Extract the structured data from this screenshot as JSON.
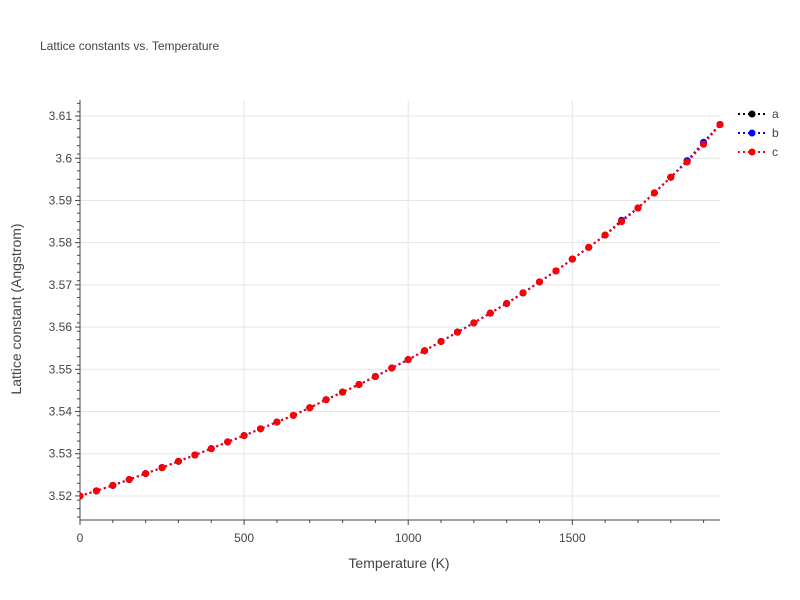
{
  "chart_data": {
    "type": "line",
    "title": "Lattice constants vs. Temperature",
    "xlabel": "Temperature (K)",
    "ylabel": "Lattice constant (Angstrom)",
    "xlim": [
      0,
      1950
    ],
    "ylim": [
      3.5143,
      3.6138
    ],
    "x_ticks": [
      0,
      500,
      1000,
      1500
    ],
    "x_tick_labels": [
      "0",
      "500",
      "1000",
      "1500"
    ],
    "y_ticks": [
      3.52,
      3.53,
      3.54,
      3.55,
      3.56,
      3.57,
      3.58,
      3.59,
      3.6,
      3.61
    ],
    "y_tick_labels": [
      "3.52",
      "3.53",
      "3.54",
      "3.55",
      "3.56",
      "3.57",
      "3.58",
      "3.59",
      "3.6",
      "3.61"
    ],
    "grid": true,
    "legend_position": "top-right",
    "x": [
      0,
      50,
      100,
      150,
      200,
      250,
      300,
      350,
      400,
      450,
      500,
      550,
      600,
      650,
      700,
      750,
      800,
      850,
      900,
      950,
      1000,
      1050,
      1100,
      1150,
      1200,
      1250,
      1300,
      1350,
      1400,
      1450,
      1500,
      1550,
      1600,
      1650,
      1700,
      1750,
      1800,
      1850,
      1900,
      1950
    ],
    "series": [
      {
        "name": "a",
        "color": "#000000",
        "values": [
          3.52,
          3.5212,
          3.5225,
          3.5239,
          3.5253,
          3.5267,
          3.5282,
          3.5297,
          3.5312,
          3.5328,
          3.5343,
          3.5359,
          3.5375,
          3.5391,
          3.5409,
          3.5428,
          3.5446,
          3.5464,
          3.5483,
          3.5503,
          3.5523,
          3.5544,
          3.5566,
          3.5588,
          3.561,
          3.5633,
          3.5656,
          3.5681,
          3.5707,
          3.5733,
          3.5761,
          3.5789,
          3.5818,
          3.585,
          3.5882,
          3.5918,
          3.5955,
          3.5994,
          3.6035,
          3.608
        ]
      },
      {
        "name": "b",
        "color": "#0000ff",
        "values": [
          3.52,
          3.5212,
          3.5225,
          3.5239,
          3.5253,
          3.5267,
          3.5282,
          3.5297,
          3.5312,
          3.5328,
          3.5343,
          3.5359,
          3.5375,
          3.5391,
          3.5409,
          3.5428,
          3.5446,
          3.5464,
          3.5483,
          3.5503,
          3.5523,
          3.5544,
          3.5566,
          3.5588,
          3.561,
          3.5633,
          3.5656,
          3.5681,
          3.5707,
          3.5733,
          3.5761,
          3.5789,
          3.5818,
          3.5853,
          3.5882,
          3.5918,
          3.5955,
          3.5994,
          3.6038,
          3.608
        ]
      },
      {
        "name": "c",
        "color": "#ff0000",
        "values": [
          3.52,
          3.5212,
          3.5225,
          3.5239,
          3.5253,
          3.5267,
          3.5282,
          3.5297,
          3.5312,
          3.5328,
          3.5343,
          3.5359,
          3.5375,
          3.5391,
          3.5409,
          3.5428,
          3.5446,
          3.5464,
          3.5483,
          3.5503,
          3.5523,
          3.5544,
          3.5566,
          3.5588,
          3.561,
          3.5633,
          3.5656,
          3.5681,
          3.5707,
          3.5733,
          3.5761,
          3.5789,
          3.5818,
          3.585,
          3.5882,
          3.5918,
          3.5955,
          3.5991,
          3.6033,
          3.608
        ]
      }
    ]
  }
}
